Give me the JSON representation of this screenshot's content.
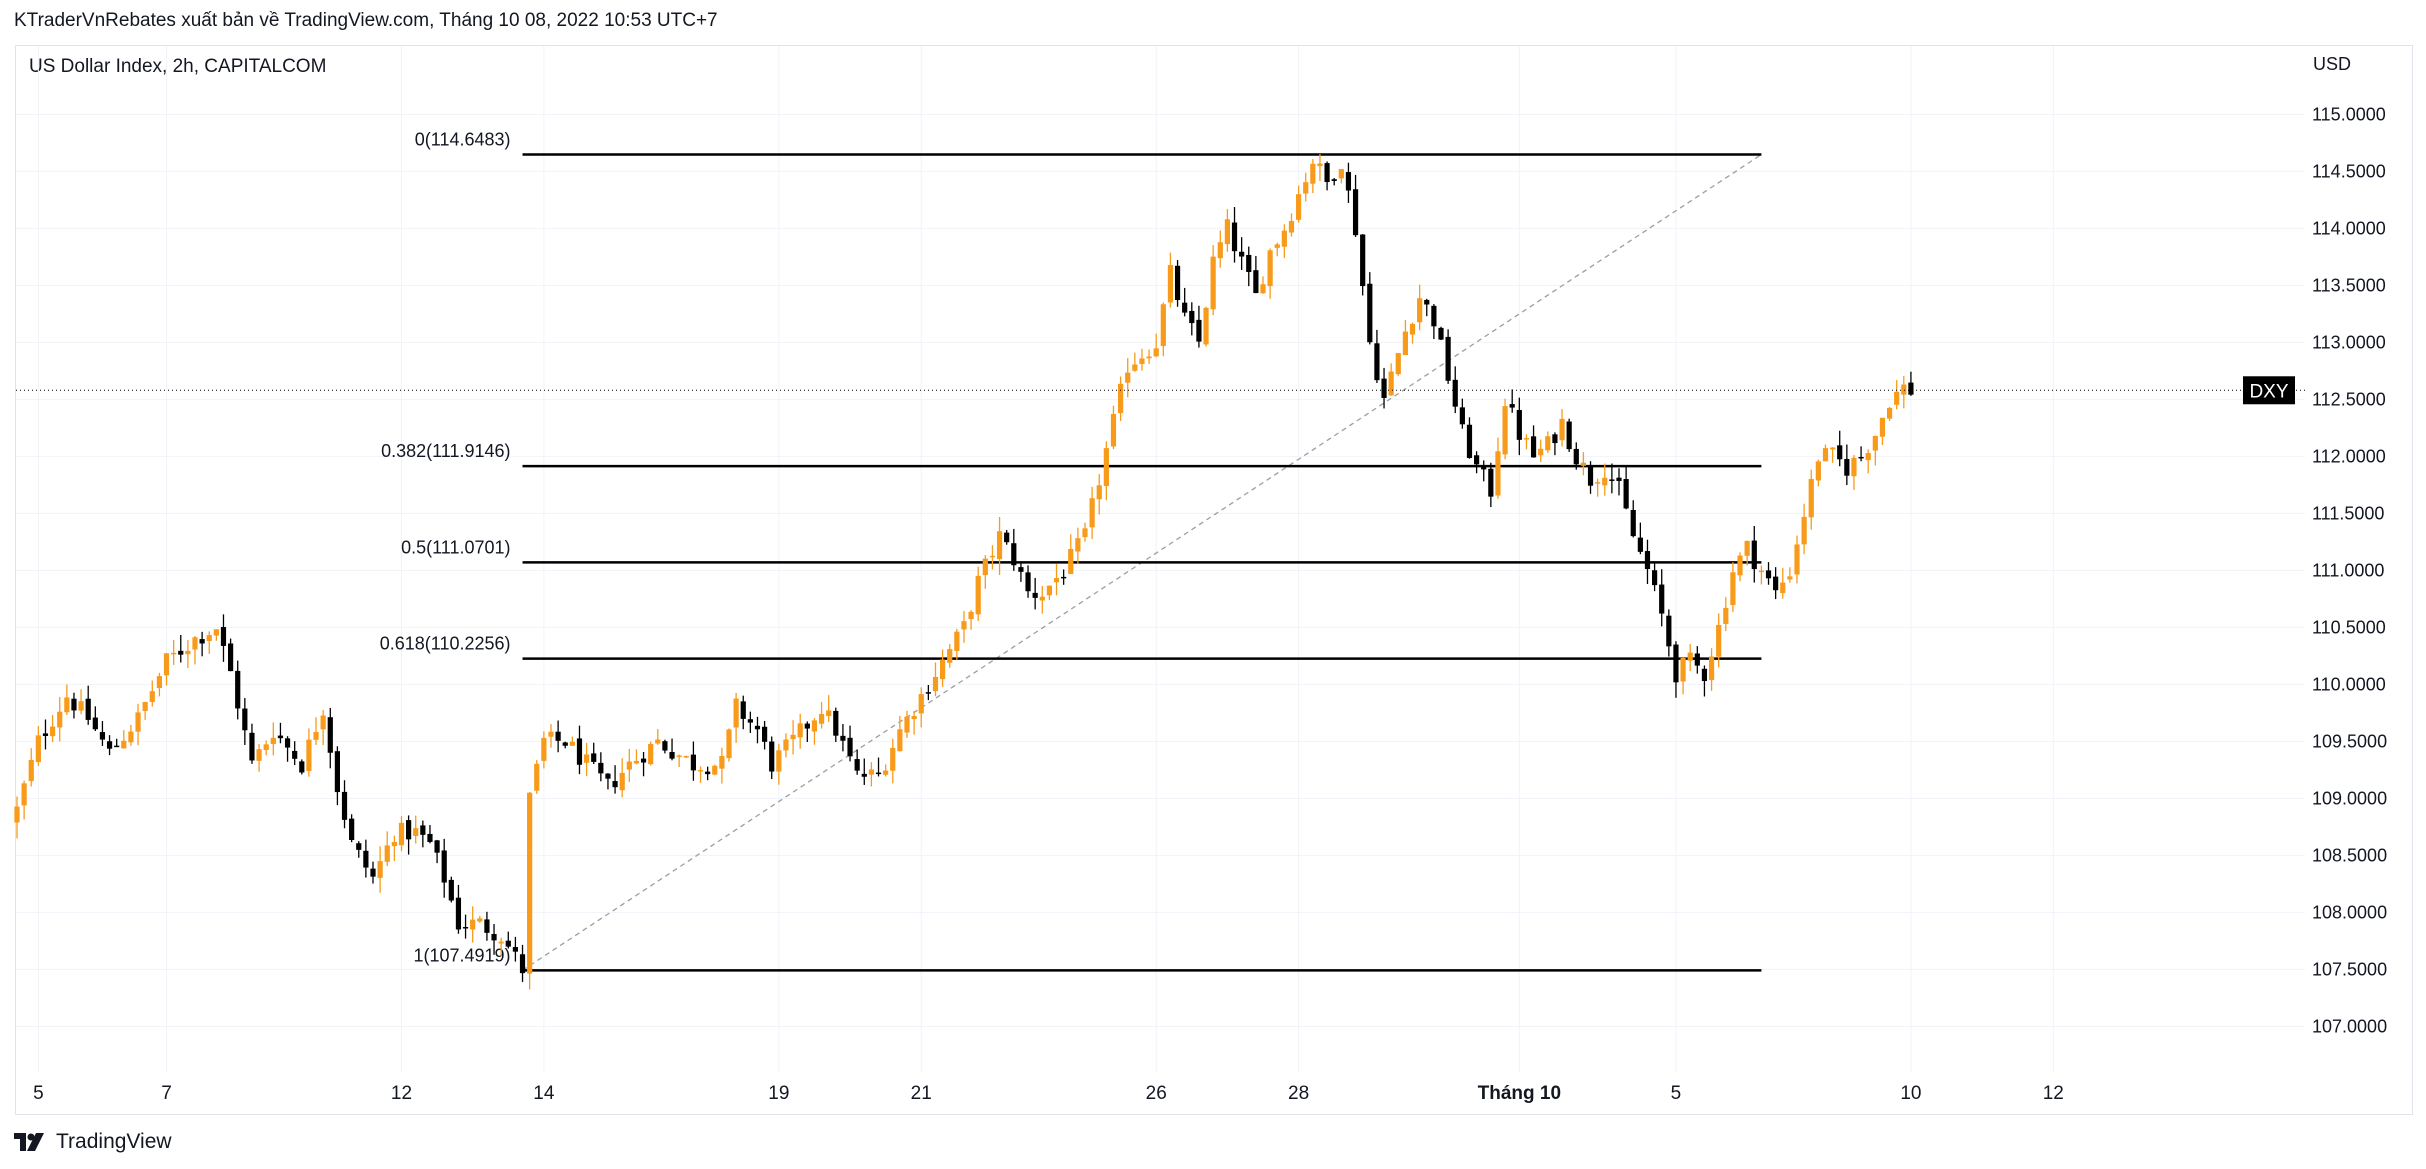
{
  "header": {
    "attribution": "KTraderVnRebates xuất bản về TradingView.com, Tháng 10 08, 2022 10:53 UTC+7"
  },
  "chart_panel": {
    "symbol_title": "US Dollar Index, 2h, CAPITALCOM",
    "currency": "USD",
    "last_price_tag": "DXY"
  },
  "footer": {
    "brand": "TradingView",
    "logo_icon": "tradingview-logo-icon"
  },
  "chart_data": {
    "type": "candlestick",
    "title": "US Dollar Index, 2h, CAPITALCOM",
    "y_axis": {
      "unit": "USD",
      "range": [
        106.6,
        115.6
      ],
      "ticks": [
        "115.0000",
        "114.5000",
        "114.0000",
        "113.5000",
        "113.0000",
        "112.5000",
        "112.0000",
        "111.5000",
        "111.0000",
        "110.5000",
        "110.0000",
        "109.5000",
        "109.0000",
        "108.5000",
        "108.0000",
        "107.5000",
        "107.0000"
      ]
    },
    "x_axis": {
      "ticks": [
        {
          "label": "5",
          "bar": 3
        },
        {
          "label": "7",
          "bar": 21
        },
        {
          "label": "12",
          "bar": 54
        },
        {
          "label": "14",
          "bar": 74
        },
        {
          "label": "19",
          "bar": 107
        },
        {
          "label": "21",
          "bar": 127
        },
        {
          "label": "26",
          "bar": 160
        },
        {
          "label": "28",
          "bar": 180
        },
        {
          "label": "Tháng 10",
          "bar": 211,
          "bold": true
        },
        {
          "label": "5",
          "bar": 233
        },
        {
          "label": "10",
          "bar": 266
        },
        {
          "label": "12",
          "bar": 286
        }
      ]
    },
    "colors": {
      "up": "#f89b1b",
      "down": "#000000",
      "fib_line": "#000000",
      "trend": "#9e9e9e",
      "grid": "#f0f3fa"
    },
    "last_price": 112.58,
    "fib_retracement": {
      "start_bar": 71,
      "end_bar": 245,
      "levels": [
        {
          "label": "0(114.6483)",
          "value": 114.6483
        },
        {
          "label": "0.382(111.9146)",
          "value": 111.9146
        },
        {
          "label": "0.5(111.0701)",
          "value": 111.0701
        },
        {
          "label": "0.618(110.2256)",
          "value": 110.2256
        },
        {
          "label": "1(107.4919)",
          "value": 107.4919
        }
      ],
      "trend_line": {
        "from": {
          "bar": 71,
          "value": 107.4919
        },
        "to": {
          "bar": 245,
          "value": 114.6483
        }
      }
    },
    "waypoints": [
      [
        0,
        108.9
      ],
      [
        3,
        109.5
      ],
      [
        7,
        109.9
      ],
      [
        10,
        109.7
      ],
      [
        13,
        109.4
      ],
      [
        17,
        109.7
      ],
      [
        21,
        110.2
      ],
      [
        25,
        110.4
      ],
      [
        28,
        110.5
      ],
      [
        30,
        110.1
      ],
      [
        33,
        109.3
      ],
      [
        36,
        109.6
      ],
      [
        40,
        109.3
      ],
      [
        43,
        109.8
      ],
      [
        45,
        109.1
      ],
      [
        47,
        108.6
      ],
      [
        50,
        108.3
      ],
      [
        53,
        108.7
      ],
      [
        56,
        108.7
      ],
      [
        58,
        108.6
      ],
      [
        60,
        108.3
      ],
      [
        62,
        107.9
      ],
      [
        65,
        107.9
      ],
      [
        68,
        107.8
      ],
      [
        71,
        107.5
      ],
      [
        72,
        109.0
      ],
      [
        74,
        109.5
      ],
      [
        77,
        109.5
      ],
      [
        80,
        109.3
      ],
      [
        83,
        109.1
      ],
      [
        86,
        109.3
      ],
      [
        90,
        109.5
      ],
      [
        95,
        109.3
      ],
      [
        99,
        109.3
      ],
      [
        101,
        109.8
      ],
      [
        104,
        109.6
      ],
      [
        106,
        109.3
      ],
      [
        109,
        109.5
      ],
      [
        113,
        109.8
      ],
      [
        115,
        109.6
      ],
      [
        118,
        109.2
      ],
      [
        121,
        109.2
      ],
      [
        124,
        109.6
      ],
      [
        127,
        109.9
      ],
      [
        130,
        110.2
      ],
      [
        133,
        110.5
      ],
      [
        135,
        110.9
      ],
      [
        138,
        111.3
      ],
      [
        140,
        111.1
      ],
      [
        142,
        110.8
      ],
      [
        144,
        110.8
      ],
      [
        147,
        111.0
      ],
      [
        150,
        111.3
      ],
      [
        152,
        111.8
      ],
      [
        154,
        112.3
      ],
      [
        156,
        112.8
      ],
      [
        158,
        112.9
      ],
      [
        160,
        113.0
      ],
      [
        162,
        113.6
      ],
      [
        164,
        113.2
      ],
      [
        166,
        113.0
      ],
      [
        168,
        113.7
      ],
      [
        170,
        114.0
      ],
      [
        172,
        113.7
      ],
      [
        174,
        113.4
      ],
      [
        176,
        113.8
      ],
      [
        178,
        114.0
      ],
      [
        180,
        114.3
      ],
      [
        182,
        114.6
      ],
      [
        184,
        114.4
      ],
      [
        186,
        114.6
      ],
      [
        188,
        114.0
      ],
      [
        190,
        113.0
      ],
      [
        192,
        112.5
      ],
      [
        193,
        112.7
      ],
      [
        195,
        113.1
      ],
      [
        197,
        113.4
      ],
      [
        199,
        113.2
      ],
      [
        201,
        112.7
      ],
      [
        203,
        112.2
      ],
      [
        205,
        111.9
      ],
      [
        207,
        111.7
      ],
      [
        209,
        112.5
      ],
      [
        211,
        112.2
      ],
      [
        213,
        112.0
      ],
      [
        215,
        112.1
      ],
      [
        217,
        112.3
      ],
      [
        219,
        112.0
      ],
      [
        221,
        111.8
      ],
      [
        223,
        111.9
      ],
      [
        225,
        111.7
      ],
      [
        227,
        111.3
      ],
      [
        229,
        111.0
      ],
      [
        231,
        110.6
      ],
      [
        233,
        110.1
      ],
      [
        235,
        110.2
      ],
      [
        237,
        110.1
      ],
      [
        239,
        110.5
      ],
      [
        241,
        111.0
      ],
      [
        243,
        111.2
      ],
      [
        245,
        111.0
      ],
      [
        247,
        110.8
      ],
      [
        249,
        111.0
      ],
      [
        251,
        111.5
      ],
      [
        253,
        112.0
      ],
      [
        255,
        112.0
      ],
      [
        257,
        111.9
      ],
      [
        259,
        112.0
      ],
      [
        261,
        112.2
      ],
      [
        263,
        112.5
      ],
      [
        265,
        112.6
      ],
      [
        266,
        112.58
      ]
    ]
  }
}
